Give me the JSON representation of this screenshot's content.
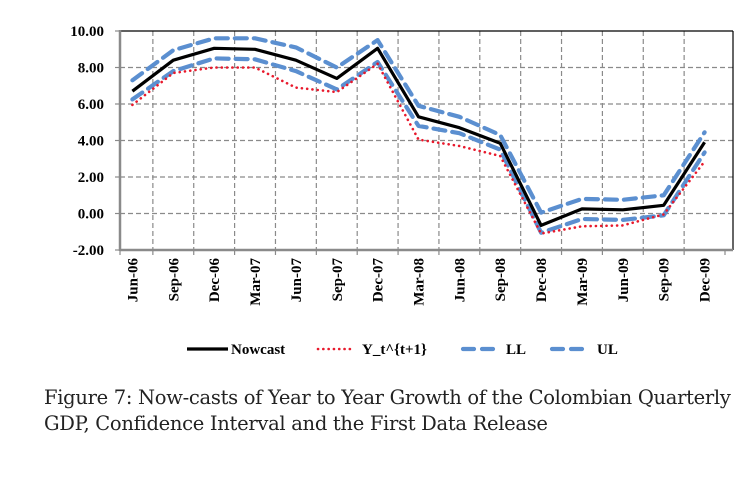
{
  "caption": {
    "line1": "Figure 7: Now-casts of Year to Year Growth of the Colombian Quarterly",
    "line2": "GDP, Confidence Interval and the First Data Release"
  },
  "chart_data": {
    "type": "line",
    "title": "",
    "xlabel": "",
    "ylabel": "",
    "ylim": [
      -2,
      10
    ],
    "yticks": [
      10,
      8,
      6,
      4,
      2,
      0,
      -2
    ],
    "ytick_labels": [
      "10.00",
      "8.00",
      "6.00",
      "4.00",
      "2.00",
      "0.00",
      "-2.00"
    ],
    "grid": true,
    "legend_position": "bottom",
    "categories": [
      "Jun-06",
      "Sep-06",
      "Dec-06",
      "Mar-07",
      "Jun-07",
      "Sep-07",
      "Dec-07",
      "Mar-08",
      "Jun-08",
      "Sep-08",
      "Dec-08",
      "Mar-09",
      "Jun-09",
      "Sep-09",
      "Dec-09"
    ],
    "series": [
      {
        "name": "Nowcast",
        "color": "#000000",
        "style": "solid",
        "values": [
          6.7,
          8.4,
          9.05,
          9.0,
          8.4,
          7.4,
          9.05,
          5.3,
          4.7,
          3.85,
          -0.65,
          0.25,
          0.2,
          0.45,
          3.9
        ]
      },
      {
        "name": "Y_t^{t+1}",
        "color": "#e8192c",
        "style": "dotted",
        "values": [
          5.95,
          7.7,
          8.0,
          8.0,
          6.9,
          6.65,
          8.2,
          4.05,
          3.7,
          3.15,
          -1.1,
          -0.7,
          -0.65,
          -0.05,
          2.85
        ]
      },
      {
        "name": "LL",
        "color": "#5b8fd0",
        "style": "dashed",
        "values": [
          6.25,
          7.8,
          8.5,
          8.45,
          7.8,
          6.8,
          8.3,
          4.8,
          4.4,
          3.5,
          -1.05,
          -0.3,
          -0.35,
          -0.1,
          3.35
        ]
      },
      {
        "name": "UL",
        "color": "#5b8fd0",
        "style": "dashed",
        "values": [
          7.3,
          8.95,
          9.6,
          9.6,
          9.1,
          8.0,
          9.5,
          5.9,
          5.3,
          4.3,
          0.05,
          0.8,
          0.75,
          1.0,
          4.45
        ]
      }
    ]
  }
}
